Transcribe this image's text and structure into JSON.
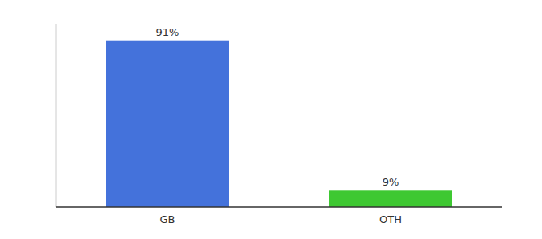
{
  "chart_data": {
    "type": "bar",
    "categories": [
      "GB",
      "OTH"
    ],
    "values": [
      91,
      9
    ],
    "value_labels": [
      "91%",
      "9%"
    ],
    "colors": [
      "#4472db",
      "#3ec832"
    ],
    "ylim": [
      0,
      100
    ],
    "data_labels": true,
    "tick_labels": "x"
  }
}
